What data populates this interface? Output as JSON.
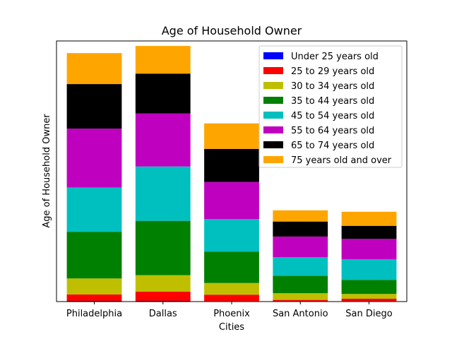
{
  "chart_data": {
    "type": "bar",
    "stacked": true,
    "title": "Age of Household Owner",
    "xlabel": "Cities",
    "ylabel": "Age of Household Owner",
    "categories": [
      "Philadelphia",
      "Dallas",
      "Phoenix",
      "San Antonio",
      "San Diego"
    ],
    "y_ticks_shown": false,
    "ylim": [
      0,
      1094
    ],
    "legend_position": "upper right",
    "series": [
      {
        "name": "Under 25 years old",
        "color": "#0000ff",
        "values": [
          3,
          3,
          2,
          2,
          2
        ]
      },
      {
        "name": "25 to 29 years old",
        "color": "#ff0000",
        "values": [
          27,
          39,
          27,
          5,
          10
        ]
      },
      {
        "name": "30 to 34 years old",
        "color": "#bfbf00",
        "values": [
          67,
          69,
          49,
          28,
          20
        ]
      },
      {
        "name": "35 to 44 years old",
        "color": "#008000",
        "values": [
          196,
          228,
          132,
          73,
          59
        ]
      },
      {
        "name": "45 to 54 years old",
        "color": "#00bfbf",
        "values": [
          186,
          228,
          136,
          78,
          87
        ]
      },
      {
        "name": "55 to 64 years old",
        "color": "#bf00bf",
        "values": [
          247,
          223,
          156,
          87,
          85
        ]
      },
      {
        "name": "65 to 74 years old",
        "color": "#000000",
        "values": [
          187,
          167,
          139,
          63,
          55
        ]
      },
      {
        "name": "75 years old and over",
        "color": "#ffa500",
        "values": [
          130,
          116,
          107,
          47,
          59
        ]
      }
    ]
  }
}
